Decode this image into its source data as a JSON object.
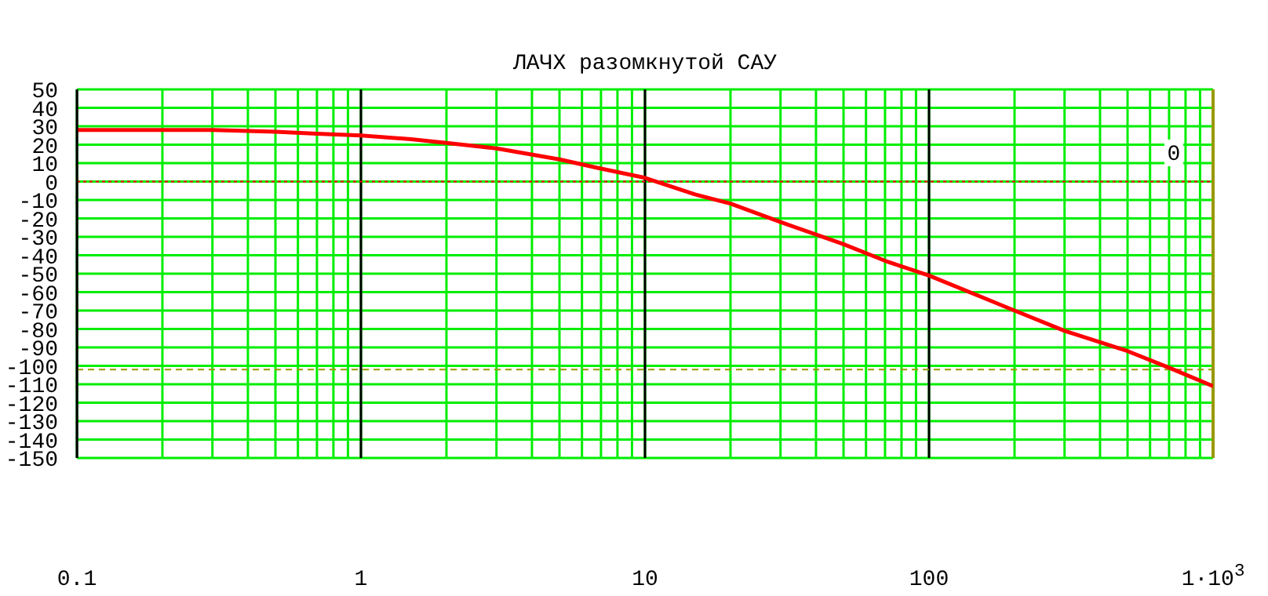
{
  "chart_data": {
    "type": "line",
    "title": "ЛАЧХ разомкнутой САУ",
    "x": [
      0.1,
      0.2,
      0.3,
      0.5,
      0.7,
      1,
      1.5,
      2,
      3,
      5,
      7,
      10,
      15,
      20,
      30,
      50,
      70,
      100,
      200,
      300,
      500,
      700,
      1000
    ],
    "series": [
      {
        "color": "#ff0000",
        "values": [
          28,
          28,
          28,
          27,
          26,
          25,
          23,
          21,
          18,
          12,
          7,
          2,
          -7,
          -12,
          -22,
          -34,
          -43,
          -51,
          -70,
          -81,
          -92,
          -101,
          -111
        ]
      }
    ],
    "log": "x",
    "xlim": [
      0.1,
      1000
    ],
    "xticks": [
      0.1,
      {
        "value": 0.2,
        "label": null
      },
      {
        "value": 0.3,
        "label": null
      },
      {
        "value": 0.4,
        "label": null
      },
      {
        "value": 0.5,
        "label": null
      },
      {
        "value": 0.6,
        "label": null
      },
      {
        "value": 0.7,
        "label": null
      },
      {
        "value": 0.8,
        "label": null
      },
      {
        "value": 0.9,
        "label": null
      },
      1,
      {
        "value": 2,
        "label": null
      },
      {
        "value": 3,
        "label": null
      },
      {
        "value": 4,
        "label": null
      },
      {
        "value": 5,
        "label": null
      },
      {
        "value": 6,
        "label": null
      },
      {
        "value": 7,
        "label": null
      },
      {
        "value": 8,
        "label": null
      },
      {
        "value": 9,
        "label": null
      },
      10,
      {
        "value": 20,
        "label": null
      },
      {
        "value": 30,
        "label": null
      },
      {
        "value": 40,
        "label": null
      },
      {
        "value": 50,
        "label": null
      },
      {
        "value": 60,
        "label": null
      },
      {
        "value": 70,
        "label": null
      },
      {
        "value": 80,
        "label": null
      },
      {
        "value": 90,
        "label": null
      },
      100,
      {
        "value": 200,
        "label": null
      },
      {
        "value": 300,
        "label": null
      },
      {
        "value": 400,
        "label": null
      },
      {
        "value": 500,
        "label": null
      },
      {
        "value": 600,
        "label": null
      },
      {
        "value": 700,
        "label": null
      },
      {
        "value": 800,
        "label": null
      },
      {
        "value": 900,
        "label": null
      },
      {
        "value": 1000,
        "label": "1·10$^{3}$"
      }
    ],
    "ylim": [
      -150,
      50
    ],
    "yticks": [
      -150,
      -140,
      -130,
      -120,
      -110,
      -100,
      -90,
      -80,
      -70,
      -60,
      -50,
      -40,
      -30,
      -20,
      -10,
      0,
      10,
      20,
      30,
      40,
      50
    ],
    "grid": true,
    "marker": "none",
    "line_style": "solid",
    "legend": false,
    "ref_lines": [
      {
        "axis": "y",
        "value": 0,
        "color": "#ff0000",
        "line_style": "dotted"
      },
      {
        "axis": "y",
        "value": -102,
        "color": "#999900",
        "line_style": "dashed"
      },
      {
        "axis": "x",
        "value": 1000,
        "color": "#999900",
        "line_style": "solid"
      }
    ],
    "annotations": [
      "0"
    ]
  }
}
